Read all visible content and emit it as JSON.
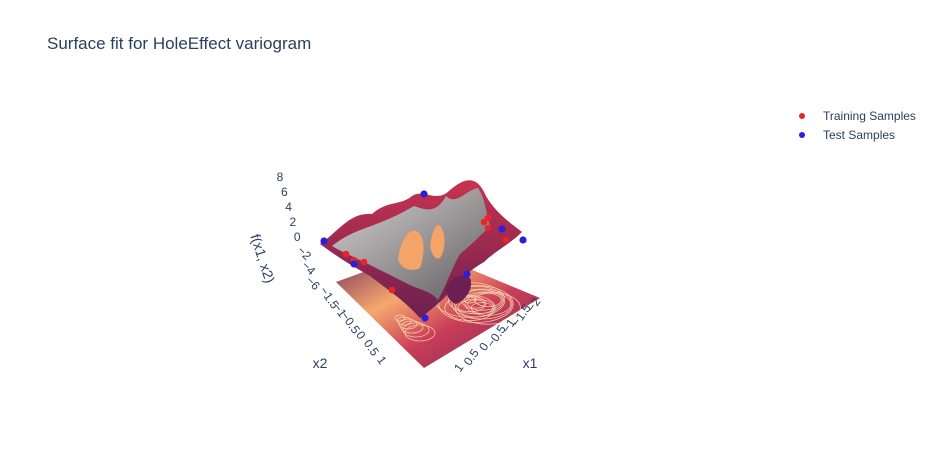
{
  "chart_data": {
    "type": "surface",
    "title": "Surface fit for HoleEffect variogram",
    "xlabel": "x1",
    "ylabel": "x2",
    "zlabel": "f(x1, x2)",
    "x_ticks": [
      "1",
      "0.5",
      "0",
      "−0.5",
      "−1",
      "−1.5",
      "−2"
    ],
    "y_ticks": [
      "−1.5",
      "−1",
      "−0.5",
      "0",
      "0.5",
      "1"
    ],
    "z_ticks": [
      "8",
      "6",
      "4",
      "2",
      "0",
      "−2",
      "−4",
      "−6"
    ],
    "xlim": [
      -2,
      1.5
    ],
    "ylim": [
      -2,
      1.5
    ],
    "zlim": [
      -6,
      8
    ],
    "legend_position": "top-right",
    "series": [
      {
        "name": "Training Samples",
        "color": "#e8262a"
      },
      {
        "name": "Test Samples",
        "color": "#2b1fd9"
      }
    ],
    "colors": {
      "surface_dark": "#6b1f52",
      "surface_mid": "#c8334f",
      "surface_light": "#f4a466",
      "surface_pale": "#fce5b8",
      "fit_surface": "#9a9a9a"
    }
  }
}
